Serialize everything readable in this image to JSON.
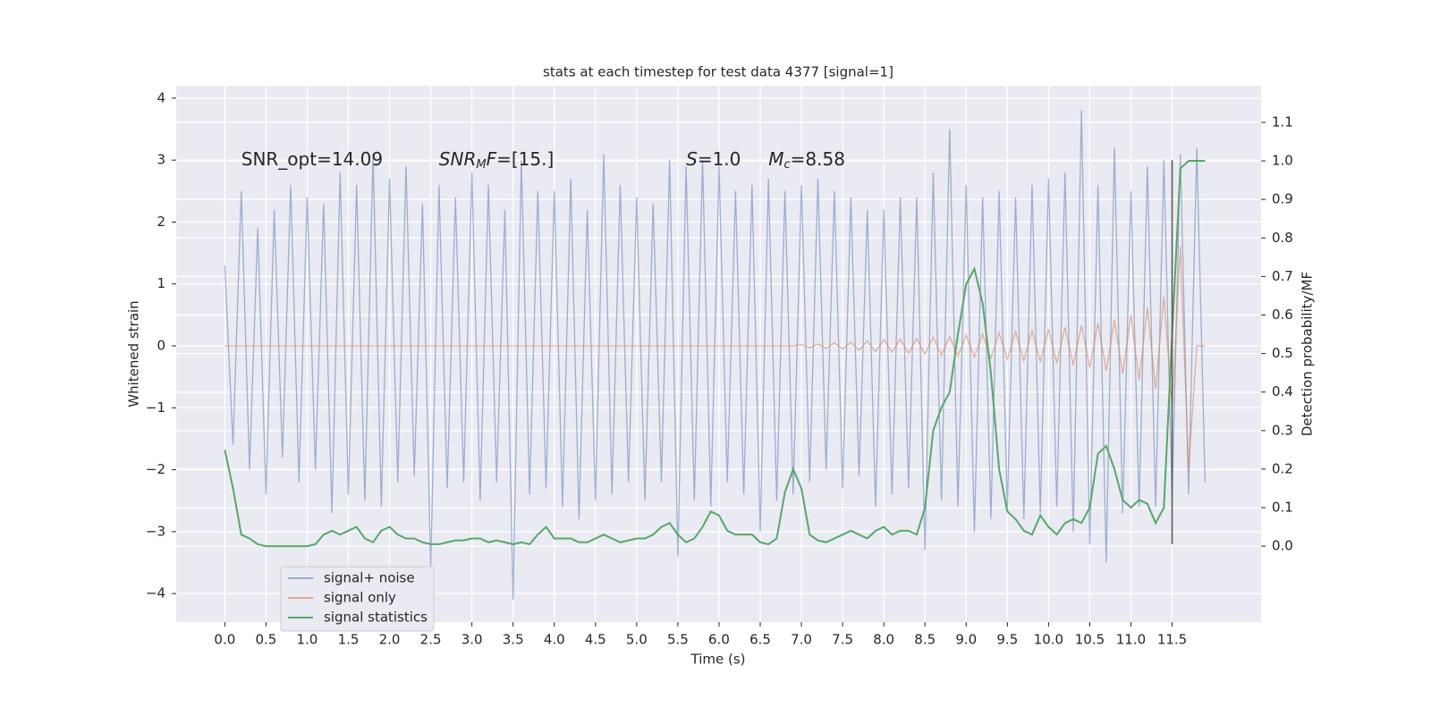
{
  "chart_data": {
    "type": "line",
    "title": "stats at each timestep for test data 4377 [signal=1]",
    "xlabel": "Time (s)",
    "ylabel": "Whitened strain",
    "y2label": "Detection probability/MF",
    "xlim": [
      -0.59,
      12.58
    ],
    "ylim": [
      -4.46,
      4.2
    ],
    "y2lim": [
      -0.197,
      1.195
    ],
    "xticks": [
      {
        "value": 0,
        "label": "0.0"
      },
      {
        "value": 0.5,
        "label": "0.5"
      },
      {
        "value": 1,
        "label": "1.0"
      },
      {
        "value": 1.5,
        "label": "1.5"
      },
      {
        "value": 2,
        "label": "2.0"
      },
      {
        "value": 2.5,
        "label": "2.5"
      },
      {
        "value": 3,
        "label": "3.0"
      },
      {
        "value": 3.5,
        "label": "3.5"
      },
      {
        "value": 4,
        "label": "4.0"
      },
      {
        "value": 4.5,
        "label": "4.5"
      },
      {
        "value": 5,
        "label": "5.0"
      },
      {
        "value": 5.5,
        "label": "5.5"
      },
      {
        "value": 6,
        "label": "6.0"
      },
      {
        "value": 6.5,
        "label": "6.5"
      },
      {
        "value": 7,
        "label": "7.0"
      },
      {
        "value": 7.5,
        "label": "7.5"
      },
      {
        "value": 8,
        "label": "8.0"
      },
      {
        "value": 8.5,
        "label": "8.5"
      },
      {
        "value": 9,
        "label": "9.0"
      },
      {
        "value": 9.5,
        "label": "9.5"
      },
      {
        "value": 10,
        "label": "10.0"
      },
      {
        "value": 10.5,
        "label": "10.5"
      },
      {
        "value": 11,
        "label": "11.0"
      },
      {
        "value": 11.5,
        "label": "11.5"
      }
    ],
    "yticks": [
      {
        "value": -4,
        "label": "−4"
      },
      {
        "value": -3,
        "label": "−3"
      },
      {
        "value": -2,
        "label": "−2"
      },
      {
        "value": -1,
        "label": "−1"
      },
      0,
      1,
      2,
      3,
      4
    ],
    "y2ticks": [
      {
        "value": 0,
        "label": "0.0"
      },
      {
        "value": 0.1,
        "label": "0.1"
      },
      {
        "value": 0.2,
        "label": "0.2"
      },
      {
        "value": 0.3,
        "label": "0.3"
      },
      {
        "value": 0.4,
        "label": "0.4"
      },
      {
        "value": 0.5,
        "label": "0.5"
      },
      {
        "value": 0.6,
        "label": "0.6"
      },
      {
        "value": 0.7,
        "label": "0.7"
      },
      {
        "value": 0.8,
        "label": "0.8"
      },
      {
        "value": 0.9,
        "label": "0.9"
      },
      {
        "value": 1.0,
        "label": "1.0"
      },
      {
        "value": 1.1,
        "label": "1.1"
      }
    ],
    "grid": true,
    "legend": "lower left",
    "x": [
      0,
      0.1,
      0.2,
      0.3,
      0.4,
      0.5,
      0.6,
      0.7,
      0.8,
      0.9,
      1,
      1.1,
      1.2,
      1.3,
      1.4,
      1.5,
      1.6,
      1.7,
      1.8,
      1.9,
      2,
      2.1,
      2.2,
      2.3,
      2.4,
      2.5,
      2.6,
      2.7,
      2.8,
      2.9,
      3,
      3.1,
      3.2,
      3.3,
      3.4,
      3.5,
      3.6,
      3.7,
      3.8,
      3.9,
      4,
      4.1,
      4.2,
      4.3,
      4.4,
      4.5,
      4.6,
      4.7,
      4.8,
      4.9,
      5,
      5.1,
      5.2,
      5.3,
      5.4,
      5.5,
      5.6,
      5.7,
      5.8,
      5.9,
      6,
      6.1,
      6.2,
      6.3,
      6.4,
      6.5,
      6.6,
      6.7,
      6.8,
      6.9,
      7,
      7.1,
      7.2,
      7.3,
      7.4,
      7.5,
      7.6,
      7.7,
      7.8,
      7.9,
      8,
      8.1,
      8.2,
      8.3,
      8.4,
      8.5,
      8.6,
      8.7,
      8.8,
      8.9,
      9,
      9.1,
      9.2,
      9.3,
      9.4,
      9.5,
      9.6,
      9.7,
      9.8,
      9.9,
      10,
      10.1,
      10.2,
      10.3,
      10.4,
      10.5,
      10.6,
      10.7,
      10.8,
      10.9,
      11,
      11.1,
      11.2,
      11.3,
      11.4,
      11.5,
      11.6,
      11.7,
      11.8,
      11.9
    ],
    "series": [
      {
        "name": "signal+ noise",
        "color": "#4c72b0",
        "opacity": 0.5,
        "values": [
          1.3,
          -1.6,
          2.5,
          -2.0,
          1.9,
          -2.4,
          2.2,
          -1.8,
          2.6,
          -2.2,
          2.4,
          -2.0,
          2.3,
          -2.7,
          2.8,
          -2.4,
          2.6,
          -2.5,
          3.1,
          -2.6,
          2.7,
          -2.2,
          2.9,
          -2.1,
          2.3,
          -3.6,
          2.6,
          -2.3,
          2.4,
          -2.2,
          2.8,
          -2.5,
          2.6,
          -2.2,
          2.2,
          -4.1,
          3.0,
          -2.4,
          2.5,
          -2.3,
          2.5,
          -2.6,
          2.7,
          -2.8,
          2.2,
          -2.5,
          3.1,
          -2.4,
          2.6,
          -2.2,
          2.4,
          -2.5,
          2.3,
          -2.2,
          3.0,
          -3.4,
          2.9,
          -2.5,
          3.0,
          -2.6,
          2.9,
          -2.2,
          2.5,
          -2.4,
          2.6,
          -3.0,
          2.7,
          -2.5,
          2.5,
          -2.4,
          2.6,
          -2.2,
          2.7,
          -2.0,
          2.5,
          -2.3,
          2.4,
          -2.1,
          2.2,
          -2.6,
          2.2,
          -2.4,
          2.4,
          -2.3,
          2.4,
          -3.3,
          2.8,
          -2.5,
          3.5,
          -2.6,
          2.6,
          -3.0,
          2.4,
          -2.8,
          2.5,
          -2.6,
          2.4,
          -2.8,
          2.6,
          -2.7,
          2.7,
          -2.6,
          2.8,
          -3.0,
          3.8,
          -3.2,
          2.6,
          -3.5,
          3.2,
          -2.7,
          2.5,
          -2.6,
          2.9,
          -2.6,
          3.0,
          -2.5,
          3.1,
          -2.4,
          3.2,
          -2.2
        ]
      },
      {
        "name": "signal only",
        "color": "#dd8452",
        "opacity": 0.6,
        "values": [
          0,
          0,
          0,
          0,
          0,
          0,
          0,
          0,
          0,
          0,
          0,
          0,
          0,
          0,
          0,
          0,
          0,
          0,
          0,
          0,
          0,
          0,
          0,
          0,
          0,
          0,
          0,
          0,
          0,
          0,
          0,
          0,
          0,
          0,
          0,
          0,
          0,
          0,
          0,
          0,
          0,
          0,
          0,
          0,
          0,
          0,
          0,
          0,
          0,
          0,
          0,
          0,
          0,
          0,
          0,
          0,
          0,
          0,
          0,
          0,
          0,
          0,
          0,
          0,
          0,
          0,
          0,
          0,
          0,
          0,
          0.02,
          -0.03,
          0.03,
          -0.04,
          0.05,
          -0.05,
          0.06,
          -0.07,
          0.08,
          -0.09,
          0.1,
          -0.1,
          0.11,
          -0.12,
          0.12,
          -0.13,
          0.14,
          -0.15,
          0.15,
          -0.16,
          0.17,
          -0.18,
          0.19,
          -0.2,
          0.21,
          -0.22,
          0.23,
          -0.24,
          0.25,
          -0.26,
          0.27,
          -0.28,
          0.3,
          -0.31,
          0.33,
          -0.35,
          0.37,
          -0.4,
          0.42,
          -0.45,
          0.5,
          -0.55,
          0.62,
          -0.7,
          0.8,
          -1.0,
          1.6,
          -2.0,
          0,
          0
        ]
      },
      {
        "name": "signal statistics",
        "color": "#55a868",
        "opacity": 1,
        "axis": "y2",
        "values": [
          0.25,
          0.15,
          0.03,
          0.02,
          0.005,
          0,
          0,
          0,
          0,
          0,
          0,
          0.005,
          0.03,
          0.04,
          0.03,
          0.04,
          0.05,
          0.02,
          0.01,
          0.04,
          0.05,
          0.03,
          0.02,
          0.02,
          0.01,
          0.005,
          0.005,
          0.01,
          0.015,
          0.015,
          0.02,
          0.02,
          0.01,
          0.015,
          0.01,
          0.005,
          0.01,
          0.005,
          0.03,
          0.05,
          0.02,
          0.02,
          0.02,
          0.01,
          0.01,
          0.02,
          0.03,
          0.02,
          0.01,
          0.015,
          0.02,
          0.02,
          0.03,
          0.05,
          0.06,
          0.03,
          0.01,
          0.02,
          0.05,
          0.09,
          0.08,
          0.04,
          0.03,
          0.03,
          0.03,
          0.01,
          0.005,
          0.02,
          0.14,
          0.2,
          0.15,
          0.03,
          0.015,
          0.01,
          0.02,
          0.03,
          0.04,
          0.03,
          0.02,
          0.04,
          0.05,
          0.03,
          0.04,
          0.04,
          0.03,
          0.1,
          0.3,
          0.36,
          0.4,
          0.55,
          0.68,
          0.72,
          0.63,
          0.45,
          0.2,
          0.09,
          0.07,
          0.04,
          0.03,
          0.08,
          0.05,
          0.03,
          0.06,
          0.07,
          0.06,
          0.1,
          0.24,
          0.26,
          0.2,
          0.12,
          0.1,
          0.12,
          0.11,
          0.06,
          0.1,
          0.55,
          0.98,
          1.0,
          1.0,
          1.0
        ]
      }
    ],
    "vlines": [
      {
        "x": 11.5,
        "ymin": -3.2,
        "ymax": 3.0,
        "color": "#555555"
      }
    ],
    "annotations": [
      {
        "x": 0.2,
        "y": 3.0,
        "parts": [
          {
            "text": "SNR_opt=14.09"
          }
        ]
      },
      {
        "x": 2.6,
        "y": 3.0,
        "parts": [
          {
            "text": "SNR",
            "style": "italic"
          },
          {
            "text": "M",
            "style": "italic-sub"
          },
          {
            "text": "F",
            "style": "italic"
          },
          {
            "text": "=[15.]"
          }
        ]
      },
      {
        "x": 5.6,
        "y": 3.0,
        "parts": [
          {
            "text": "S",
            "style": "italic"
          },
          {
            "text": "=1.0"
          }
        ]
      },
      {
        "x": 6.6,
        "y": 3.0,
        "parts": [
          {
            "text": "M",
            "style": "italic"
          },
          {
            "text": "c",
            "style": "italic-sub"
          },
          {
            "text": "=8.58"
          }
        ]
      }
    ]
  }
}
